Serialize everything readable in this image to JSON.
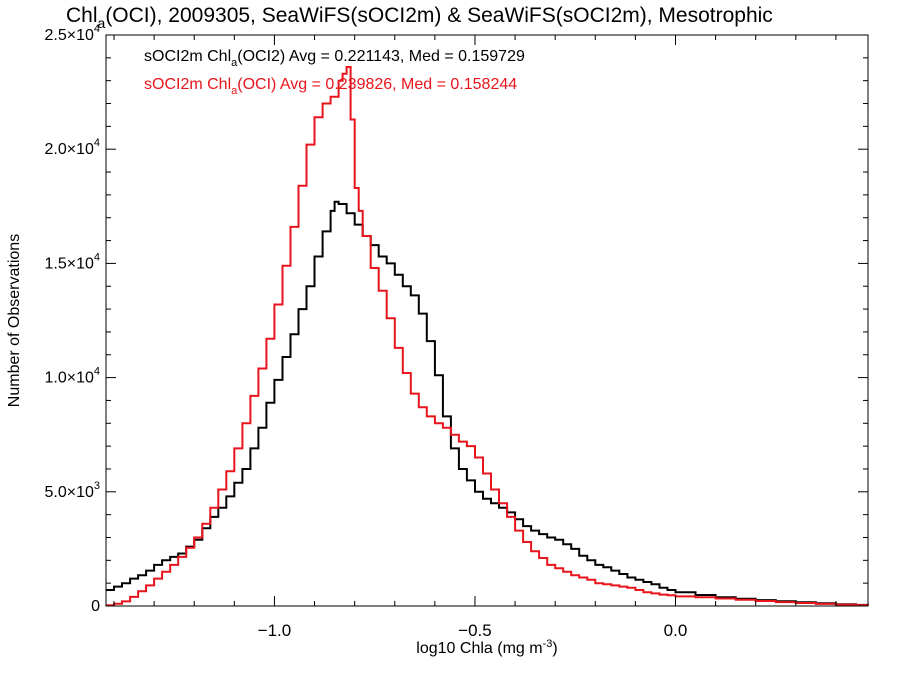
{
  "chart_data": {
    "type": "line",
    "title": {
      "parts": [
        {
          "text": "Chl",
          "sub": false
        },
        {
          "text": "a",
          "sub": true
        },
        {
          "text": "(OCI), 2009305, SeaWiFS(sOCI2m) & SeaWiFS(sOCI2m), Mesotrophic",
          "sub": false
        }
      ]
    },
    "xlabel": {
      "parts": [
        {
          "text": "log10 Chla (mg m",
          "sup": false
        },
        {
          "text": "-3",
          "sup": true
        },
        {
          "text": ")",
          "sup": false
        }
      ]
    },
    "ylabel": "Number of Observations",
    "xlim": [
      -1.42,
      0.48
    ],
    "ylim": [
      0,
      25000
    ],
    "x_ticks": [
      {
        "value": -1.0,
        "label": "−1.0"
      },
      {
        "value": -0.5,
        "label": "−0.5"
      },
      {
        "value": 0.0,
        "label": "0.0"
      }
    ],
    "y_ticks": [
      {
        "value": 0,
        "mant": "0",
        "exp": ""
      },
      {
        "value": 5000,
        "mant": "5.0×10",
        "exp": "3"
      },
      {
        "value": 10000,
        "mant": "1.0×10",
        "exp": "4"
      },
      {
        "value": 15000,
        "mant": "1.5×10",
        "exp": "4"
      },
      {
        "value": 20000,
        "mant": "2.0×10",
        "exp": "4"
      },
      {
        "value": 25000,
        "mant": "2.5×10",
        "exp": "4"
      }
    ],
    "grid": false,
    "legend_position": "top-left",
    "series": [
      {
        "color": "#000000",
        "legend": {
          "prefix": "sOCI2m Chl",
          "sub": "a",
          "suffix": "(OCI2) Avg = 0.221143, Med = 0.159729"
        },
        "x": [
          -1.42,
          -1.4,
          -1.38,
          -1.36,
          -1.34,
          -1.32,
          -1.3,
          -1.28,
          -1.26,
          -1.24,
          -1.22,
          -1.2,
          -1.18,
          -1.16,
          -1.14,
          -1.12,
          -1.1,
          -1.08,
          -1.06,
          -1.04,
          -1.02,
          -1.0,
          -0.98,
          -0.96,
          -0.94,
          -0.92,
          -0.9,
          -0.88,
          -0.86,
          -0.85,
          -0.84,
          -0.82,
          -0.8,
          -0.78,
          -0.76,
          -0.74,
          -0.72,
          -0.7,
          -0.68,
          -0.66,
          -0.64,
          -0.62,
          -0.6,
          -0.58,
          -0.56,
          -0.54,
          -0.52,
          -0.5,
          -0.48,
          -0.46,
          -0.44,
          -0.42,
          -0.4,
          -0.38,
          -0.36,
          -0.34,
          -0.32,
          -0.3,
          -0.28,
          -0.26,
          -0.24,
          -0.22,
          -0.2,
          -0.18,
          -0.16,
          -0.14,
          -0.12,
          -0.1,
          -0.08,
          -0.06,
          -0.04,
          -0.02,
          0.0,
          0.05,
          0.1,
          0.15,
          0.2,
          0.25,
          0.3,
          0.35,
          0.4,
          0.45,
          0.48
        ],
        "y": [
          700,
          850,
          1000,
          1200,
          1350,
          1550,
          1800,
          2000,
          2150,
          2300,
          2600,
          2900,
          3400,
          3900,
          4300,
          4800,
          5400,
          6000,
          6900,
          7800,
          8900,
          9900,
          10900,
          11900,
          13000,
          14000,
          15300,
          16400,
          17300,
          17700,
          17600,
          17200,
          16700,
          16200,
          15800,
          15300,
          15000,
          14500,
          14000,
          13600,
          12800,
          11600,
          10100,
          8300,
          6900,
          6000,
          5500,
          5000,
          4700,
          4500,
          4300,
          4100,
          3800,
          3500,
          3300,
          3150,
          3000,
          2900,
          2700,
          2500,
          2200,
          2000,
          1800,
          1700,
          1550,
          1400,
          1250,
          1150,
          1050,
          950,
          800,
          700,
          600,
          480,
          380,
          320,
          260,
          210,
          160,
          120,
          80,
          50,
          40
        ]
      },
      {
        "color": "#e8141b",
        "legend": {
          "prefix": "sOCI2m Chl",
          "sub": "a",
          "suffix": "(OCI) Avg = 0.239826, Med = 0.158244"
        },
        "x": [
          -1.42,
          -1.4,
          -1.38,
          -1.36,
          -1.34,
          -1.32,
          -1.3,
          -1.28,
          -1.26,
          -1.24,
          -1.22,
          -1.2,
          -1.18,
          -1.16,
          -1.14,
          -1.12,
          -1.1,
          -1.08,
          -1.06,
          -1.04,
          -1.02,
          -1.0,
          -0.98,
          -0.96,
          -0.94,
          -0.92,
          -0.9,
          -0.88,
          -0.86,
          -0.84,
          -0.83,
          -0.82,
          -0.81,
          -0.8,
          -0.79,
          -0.78,
          -0.76,
          -0.74,
          -0.72,
          -0.7,
          -0.68,
          -0.66,
          -0.64,
          -0.62,
          -0.6,
          -0.58,
          -0.56,
          -0.54,
          -0.52,
          -0.5,
          -0.48,
          -0.46,
          -0.44,
          -0.42,
          -0.4,
          -0.38,
          -0.36,
          -0.34,
          -0.32,
          -0.3,
          -0.28,
          -0.26,
          -0.24,
          -0.22,
          -0.2,
          -0.18,
          -0.16,
          -0.14,
          -0.12,
          -0.1,
          -0.08,
          -0.06,
          -0.04,
          -0.02,
          0.0,
          0.05,
          0.1,
          0.15,
          0.2,
          0.25,
          0.3,
          0.35,
          0.4,
          0.45,
          0.48
        ],
        "y": [
          30,
          100,
          200,
          400,
          650,
          900,
          1200,
          1500,
          1800,
          2150,
          2550,
          3000,
          3600,
          4300,
          5100,
          5900,
          6900,
          8000,
          9200,
          10400,
          11700,
          13200,
          14900,
          16600,
          18400,
          20200,
          21400,
          22000,
          22300,
          23000,
          23300,
          23600,
          21300,
          18300,
          17300,
          16200,
          14800,
          13800,
          12600,
          11300,
          10200,
          9300,
          8700,
          8300,
          8000,
          7800,
          7500,
          7200,
          7000,
          6500,
          5800,
          5100,
          4500,
          3900,
          3300,
          2800,
          2400,
          2100,
          1800,
          1650,
          1500,
          1350,
          1250,
          1150,
          1000,
          950,
          900,
          850,
          800,
          700,
          600,
          550,
          500,
          470,
          420,
          380,
          330,
          270,
          220,
          170,
          130,
          90,
          60,
          40,
          30
        ]
      }
    ]
  }
}
